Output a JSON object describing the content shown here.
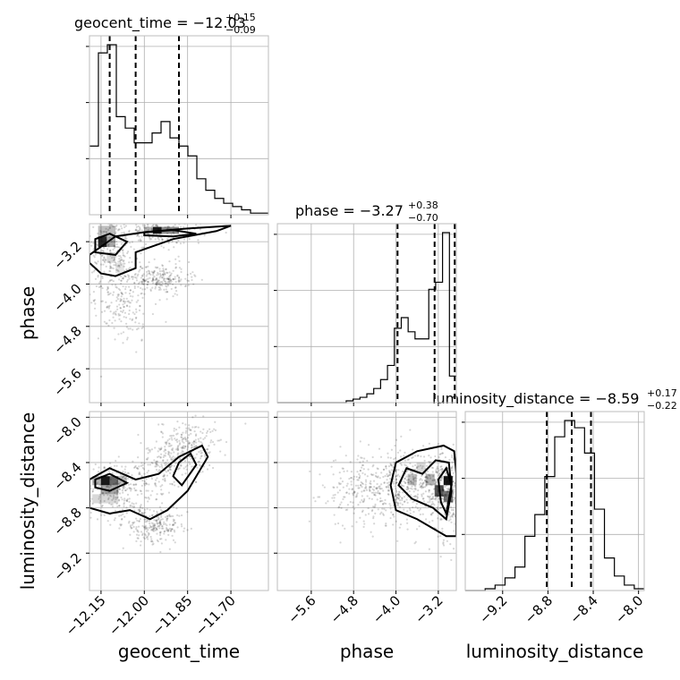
{
  "chart_data": {
    "type": "corner",
    "parameters": [
      "geocent_time",
      "phase",
      "luminosity_distance"
    ],
    "titles": [
      {
        "main": "geocent_time = −12.03",
        "sup": "+0.15",
        "sub": "−0.09"
      },
      {
        "main": "phase = −3.27",
        "sup": "+0.38",
        "sub": "−0.70"
      },
      {
        "main": "luminosity_distance = −8.59",
        "sup": "+0.17",
        "sub": "−0.22"
      }
    ],
    "axis_labels": {
      "x": [
        "geocent_time",
        "phase",
        "luminosity_distance"
      ],
      "y": [
        "phase",
        "luminosity_distance"
      ]
    },
    "ranges": {
      "geocent_time": [
        -12.19,
        -11.57
      ],
      "phase": [
        -6.24,
        -2.86
      ],
      "luminosity_distance": [
        -9.53,
        -7.95
      ]
    },
    "ticks": {
      "geocent_time": {
        "values": [
          -12.15,
          -12.0,
          -11.85,
          -11.7
        ],
        "labels": [
          "−12.15",
          "−12.00",
          "−11.85",
          "−11.70"
        ]
      },
      "phase": {
        "values": [
          -5.6,
          -4.8,
          -4.0,
          -3.2
        ],
        "labels": [
          "−5.6",
          "−4.8",
          "−4.0",
          "−3.2"
        ]
      },
      "luminosity_distance": {
        "values": [
          -9.2,
          -8.8,
          -8.4,
          -8.0
        ],
        "labels": [
          "−9.2",
          "−8.8",
          "−8.4",
          "−8.0"
        ]
      }
    },
    "quantiles": {
      "geocent_time": [
        -12.12,
        -12.03,
        -11.88
      ],
      "phase": [
        -3.97,
        -3.27,
        -2.89
      ],
      "luminosity_distance": [
        -8.81,
        -8.59,
        -8.42
      ]
    },
    "histograms": {
      "geocent_time": {
        "range": [
          -12.19,
          -11.57
        ],
        "counts": [
          0.42,
          0.99,
          1.04,
          0.6,
          0.53,
          0.44,
          0.44,
          0.5,
          0.57,
          0.47,
          0.42,
          0.36,
          0.22,
          0.15,
          0.1,
          0.07,
          0.05,
          0.03,
          0.01,
          0.01
        ]
      },
      "phase": {
        "range": [
          -6.24,
          -2.86
        ],
        "counts": [
          0.0,
          0.0,
          0.0,
          0.0,
          0.0,
          0.0,
          0.0,
          0.0,
          0.0,
          0.0,
          0.01,
          0.02,
          0.03,
          0.05,
          0.08,
          0.13,
          0.21,
          0.42,
          0.48,
          0.4,
          0.36,
          0.36,
          0.64,
          0.68,
          0.96,
          0.15
        ]
      },
      "luminosity_distance": {
        "range": [
          -9.53,
          -7.95
        ],
        "counts": [
          0.0,
          0.0,
          0.01,
          0.03,
          0.07,
          0.13,
          0.3,
          0.42,
          0.63,
          0.85,
          0.94,
          0.9,
          0.76,
          0.45,
          0.18,
          0.08,
          0.03,
          0.01
        ]
      }
    },
    "grid": true,
    "style": "monochrome contour corner plot with gray density and scatter"
  }
}
